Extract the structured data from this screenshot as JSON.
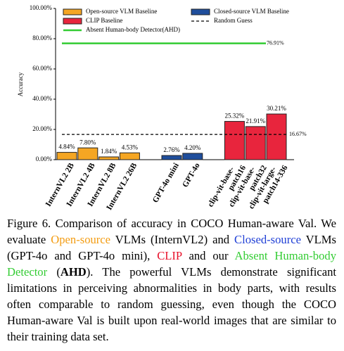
{
  "chart_data": {
    "type": "bar",
    "y_label": "Accuracy",
    "categories": [
      "InternVL2 2B",
      "InternVL2 4B",
      "InternVL2 8B",
      "InternVL2 26B",
      null,
      "GPT-4o mini",
      "GPT-4o",
      null,
      "clip-vit-base-patch16",
      "clip-vit-base-patch32",
      "clip-vit-large-patch14-336"
    ],
    "series": [
      {
        "name": "Open-source VLM Baseline",
        "color": "#f5a623",
        "values": [
          4.84,
          7.8,
          1.84,
          4.53,
          null,
          null,
          null,
          null,
          null,
          null,
          null
        ],
        "value_labels": [
          "4.84%",
          "7.80%",
          "1.84%",
          "4.53%",
          null,
          null,
          null,
          null,
          null,
          null,
          null
        ]
      },
      {
        "name": "Closed-source VLM Baseline",
        "color": "#1f4e9c",
        "values": [
          null,
          null,
          null,
          null,
          null,
          2.76,
          4.2,
          null,
          null,
          null,
          null
        ],
        "value_labels": [
          null,
          null,
          null,
          null,
          null,
          "2.76%",
          "4.20%",
          null,
          null,
          null,
          null
        ]
      },
      {
        "name": "CLIP Baseline",
        "color": "#e8253d",
        "values": [
          null,
          null,
          null,
          null,
          null,
          null,
          null,
          null,
          25.32,
          21.91,
          30.21
        ],
        "value_labels": [
          null,
          null,
          null,
          null,
          null,
          null,
          null,
          null,
          "25.32%",
          "21.91%",
          "30.21%"
        ]
      }
    ],
    "lines": [
      {
        "name": "Random Guess",
        "color": "#000000",
        "dash": true,
        "value": 16.67,
        "value_label": "16.67%"
      },
      {
        "name": "Absent Human-body Detector(AHD)",
        "color": "#33cc33",
        "dash": false,
        "value": 76.91,
        "value_label": "76.91%"
      }
    ],
    "ylim": [
      0,
      100
    ],
    "yticks": [
      {
        "value": 0,
        "label": "0.00%"
      },
      {
        "value": 20,
        "label": "20.00%"
      },
      {
        "value": 40,
        "label": "40.00%"
      },
      {
        "value": 60,
        "label": "60.00%"
      },
      {
        "value": 80,
        "label": "80.00%"
      },
      {
        "value": 100,
        "label": "100.00%"
      }
    ]
  },
  "caption": [
    {
      "text": "Figure 6.  Comparison of accuracy in COCO Human-aware Val. We evaluate "
    },
    {
      "text": "Open-source",
      "color": "#f39c12"
    },
    {
      "text": " VLMs (InternVL2) and "
    },
    {
      "text": "Closed-source",
      "color": "#1f3fd6"
    },
    {
      "text": " VLMs (GPT-4o and GPT-4o mini), "
    },
    {
      "text": "CLIP",
      "color": "#e8102a"
    },
    {
      "text": " and our "
    },
    {
      "text": "Absent Human-body Detector",
      "color": "#33cc33"
    },
    {
      "text": " ("
    },
    {
      "text": "AHD",
      "bold": true
    },
    {
      "text": "). The powerful VLMs demonstrate significant limitations in perceiving abnormalities in body parts, with results often comparable to random guessing, even though the COCO Human-aware Val is built upon real-world images that are similar to their training data set."
    }
  ]
}
